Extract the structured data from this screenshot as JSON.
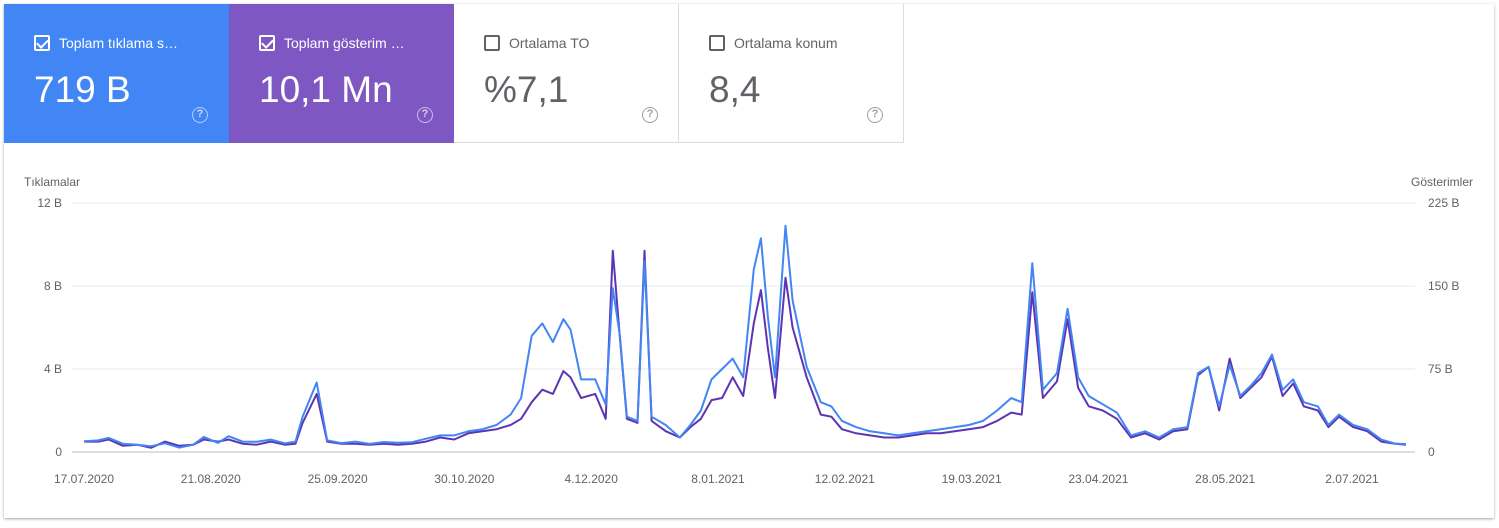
{
  "cards": [
    {
      "label": "Toplam tıklama s…",
      "value": "719 B",
      "checked": true
    },
    {
      "label": "Toplam gösterim …",
      "value": "10,1 Mn",
      "checked": true
    },
    {
      "label": "Ortalama TO",
      "value": "%7,1",
      "checked": false
    },
    {
      "label": "Ortalama konum",
      "value": "8,4",
      "checked": false
    }
  ],
  "help_glyph": "?",
  "colors": {
    "clicks": "#4285f4",
    "impressions": "#7e57c2",
    "line_clicks": "#4285f4",
    "line_impressions": "#5e35b1"
  },
  "chart_data": {
    "type": "line",
    "left_axis_label": "Tıklamalar",
    "right_axis_label": "Gösterimler",
    "left_ticks": [
      "0",
      "4 B",
      "8 B",
      "12 B"
    ],
    "right_ticks": [
      "0",
      "75 B",
      "150 B",
      "225 B"
    ],
    "x_ticks": [
      "17.07.2020",
      "21.08.2020",
      "25.09.2020",
      "30.10.2020",
      "4.12.2020",
      "8.01.2021",
      "12.02.2021",
      "19.03.2021",
      "23.04.2021",
      "28.05.2021",
      "2.07.2021"
    ],
    "left_ylim": [
      0,
      12000
    ],
    "right_ylim": [
      0,
      225000
    ],
    "x_start": "2020-07-17",
    "x_end": "2021-07-27",
    "series": [
      {
        "name": "Toplam tıklama sayısı",
        "axis": "left",
        "points": [
          [
            "2020-07-17",
            520
          ],
          [
            "2020-07-21",
            560
          ],
          [
            "2020-07-24",
            680
          ],
          [
            "2020-07-28",
            400
          ],
          [
            "2020-08-01",
            350
          ],
          [
            "2020-08-05",
            280
          ],
          [
            "2020-08-09",
            420
          ],
          [
            "2020-08-13",
            210
          ],
          [
            "2020-08-17",
            350
          ],
          [
            "2020-08-20",
            730
          ],
          [
            "2020-08-24",
            440
          ],
          [
            "2020-08-27",
            760
          ],
          [
            "2020-08-31",
            500
          ],
          [
            "2020-09-04",
            490
          ],
          [
            "2020-09-08",
            600
          ],
          [
            "2020-09-12",
            420
          ],
          [
            "2020-09-15",
            500
          ],
          [
            "2020-09-17",
            1700
          ],
          [
            "2020-09-21",
            3350
          ],
          [
            "2020-09-24",
            560
          ],
          [
            "2020-09-28",
            430
          ],
          [
            "2020-10-02",
            500
          ],
          [
            "2020-10-06",
            390
          ],
          [
            "2020-10-10",
            480
          ],
          [
            "2020-10-14",
            450
          ],
          [
            "2020-10-18",
            470
          ],
          [
            "2020-10-22",
            640
          ],
          [
            "2020-10-26",
            800
          ],
          [
            "2020-10-30",
            800
          ],
          [
            "2020-11-03",
            1000
          ],
          [
            "2020-11-07",
            1100
          ],
          [
            "2020-11-11",
            1300
          ],
          [
            "2020-11-15",
            1800
          ],
          [
            "2020-11-18",
            2600
          ],
          [
            "2020-11-21",
            5600
          ],
          [
            "2020-11-24",
            6200
          ],
          [
            "2020-11-27",
            5300
          ],
          [
            "2020-11-30",
            6400
          ],
          [
            "2020-12-02",
            5900
          ],
          [
            "2020-12-05",
            3500
          ],
          [
            "2020-12-09",
            3500
          ],
          [
            "2020-12-12",
            2300
          ],
          [
            "2020-12-14",
            7900
          ],
          [
            "2020-12-16",
            5600
          ],
          [
            "2020-12-18",
            1700
          ],
          [
            "2020-12-21",
            1500
          ],
          [
            "2020-12-23",
            9200
          ],
          [
            "2020-12-25",
            1700
          ],
          [
            "2020-12-29",
            1300
          ],
          [
            "2021-01-02",
            700
          ],
          [
            "2021-01-05",
            1300
          ],
          [
            "2021-01-08",
            2000
          ],
          [
            "2021-01-11",
            3500
          ],
          [
            "2021-01-14",
            4000
          ],
          [
            "2021-01-17",
            4500
          ],
          [
            "2021-01-20",
            3600
          ],
          [
            "2021-01-23",
            8800
          ],
          [
            "2021-01-25",
            10300
          ],
          [
            "2021-01-27",
            6500
          ],
          [
            "2021-01-29",
            3600
          ],
          [
            "2021-02-01",
            10900
          ],
          [
            "2021-02-03",
            7300
          ],
          [
            "2021-02-07",
            4100
          ],
          [
            "2021-02-11",
            2400
          ],
          [
            "2021-02-14",
            2200
          ],
          [
            "2021-02-17",
            1500
          ],
          [
            "2021-02-21",
            1200
          ],
          [
            "2021-02-25",
            1000
          ],
          [
            "2021-03-01",
            900
          ],
          [
            "2021-03-05",
            800
          ],
          [
            "2021-03-09",
            900
          ],
          [
            "2021-03-13",
            1000
          ],
          [
            "2021-03-17",
            1100
          ],
          [
            "2021-03-21",
            1200
          ],
          [
            "2021-03-25",
            1300
          ],
          [
            "2021-03-29",
            1500
          ],
          [
            "2021-04-02",
            2000
          ],
          [
            "2021-04-06",
            2600
          ],
          [
            "2021-04-09",
            2400
          ],
          [
            "2021-04-12",
            9100
          ],
          [
            "2021-04-15",
            3000
          ],
          [
            "2021-04-19",
            3800
          ],
          [
            "2021-04-22",
            6900
          ],
          [
            "2021-04-25",
            3600
          ],
          [
            "2021-04-28",
            2700
          ],
          [
            "2021-05-02",
            2300
          ],
          [
            "2021-05-06",
            1900
          ],
          [
            "2021-05-10",
            800
          ],
          [
            "2021-05-14",
            1000
          ],
          [
            "2021-05-18",
            700
          ],
          [
            "2021-05-22",
            1100
          ],
          [
            "2021-05-26",
            1200
          ],
          [
            "2021-05-29",
            3800
          ],
          [
            "2021-06-01",
            4100
          ],
          [
            "2021-06-04",
            2200
          ],
          [
            "2021-06-07",
            4200
          ],
          [
            "2021-06-10",
            2700
          ],
          [
            "2021-06-13",
            3200
          ],
          [
            "2021-06-16",
            3800
          ],
          [
            "2021-06-19",
            4700
          ],
          [
            "2021-06-22",
            3000
          ],
          [
            "2021-06-25",
            3500
          ],
          [
            "2021-06-28",
            2400
          ],
          [
            "2021-07-02",
            2200
          ],
          [
            "2021-07-05",
            1300
          ],
          [
            "2021-07-08",
            1800
          ],
          [
            "2021-07-12",
            1300
          ],
          [
            "2021-07-16",
            1100
          ],
          [
            "2021-07-20",
            600
          ],
          [
            "2021-07-24",
            400
          ],
          [
            "2021-07-27",
            380
          ]
        ]
      },
      {
        "name": "Toplam gösterim sayısı",
        "axis": "right",
        "points": [
          [
            "2020-07-17",
            9400
          ],
          [
            "2020-07-21",
            9400
          ],
          [
            "2020-07-24",
            11300
          ],
          [
            "2020-07-28",
            5600
          ],
          [
            "2020-08-01",
            6600
          ],
          [
            "2020-08-05",
            3800
          ],
          [
            "2020-08-09",
            9400
          ],
          [
            "2020-08-13",
            5600
          ],
          [
            "2020-08-17",
            6600
          ],
          [
            "2020-08-20",
            11300
          ],
          [
            "2020-08-24",
            9400
          ],
          [
            "2020-08-27",
            11300
          ],
          [
            "2020-08-31",
            7500
          ],
          [
            "2020-09-04",
            6600
          ],
          [
            "2020-09-08",
            9400
          ],
          [
            "2020-09-12",
            6600
          ],
          [
            "2020-09-15",
            7500
          ],
          [
            "2020-09-17",
            26300
          ],
          [
            "2020-09-21",
            52500
          ],
          [
            "2020-09-24",
            9400
          ],
          [
            "2020-09-28",
            7500
          ],
          [
            "2020-10-02",
            7500
          ],
          [
            "2020-10-06",
            6600
          ],
          [
            "2020-10-10",
            7500
          ],
          [
            "2020-10-14",
            6600
          ],
          [
            "2020-10-18",
            7500
          ],
          [
            "2020-10-22",
            9400
          ],
          [
            "2020-10-26",
            13100
          ],
          [
            "2020-10-30",
            11300
          ],
          [
            "2020-11-03",
            16900
          ],
          [
            "2020-11-07",
            18800
          ],
          [
            "2020-11-11",
            20600
          ],
          [
            "2020-11-15",
            24400
          ],
          [
            "2020-11-18",
            30000
          ],
          [
            "2020-11-21",
            45000
          ],
          [
            "2020-11-24",
            56300
          ],
          [
            "2020-11-27",
            52500
          ],
          [
            "2020-11-30",
            73100
          ],
          [
            "2020-12-02",
            67500
          ],
          [
            "2020-12-05",
            48800
          ],
          [
            "2020-12-09",
            52500
          ],
          [
            "2020-12-12",
            30000
          ],
          [
            "2020-12-14",
            181900
          ],
          [
            "2020-12-16",
            103100
          ],
          [
            "2020-12-18",
            30000
          ],
          [
            "2020-12-21",
            26300
          ],
          [
            "2020-12-23",
            181900
          ],
          [
            "2020-12-25",
            28100
          ],
          [
            "2020-12-29",
            18800
          ],
          [
            "2021-01-02",
            13100
          ],
          [
            "2021-01-05",
            22500
          ],
          [
            "2021-01-08",
            30000
          ],
          [
            "2021-01-11",
            46900
          ],
          [
            "2021-01-14",
            48800
          ],
          [
            "2021-01-17",
            67500
          ],
          [
            "2021-01-20",
            50600
          ],
          [
            "2021-01-23",
            116300
          ],
          [
            "2021-01-25",
            146300
          ],
          [
            "2021-01-27",
            93800
          ],
          [
            "2021-01-29",
            48800
          ],
          [
            "2021-02-01",
            157500
          ],
          [
            "2021-02-03",
            112500
          ],
          [
            "2021-02-07",
            67500
          ],
          [
            "2021-02-11",
            33800
          ],
          [
            "2021-02-14",
            31900
          ],
          [
            "2021-02-17",
            20600
          ],
          [
            "2021-02-21",
            16900
          ],
          [
            "2021-02-25",
            15000
          ],
          [
            "2021-03-01",
            13100
          ],
          [
            "2021-03-05",
            13100
          ],
          [
            "2021-03-09",
            15000
          ],
          [
            "2021-03-13",
            16900
          ],
          [
            "2021-03-17",
            16900
          ],
          [
            "2021-03-21",
            18800
          ],
          [
            "2021-03-25",
            20600
          ],
          [
            "2021-03-29",
            22500
          ],
          [
            "2021-04-02",
            28100
          ],
          [
            "2021-04-06",
            35600
          ],
          [
            "2021-04-09",
            33800
          ],
          [
            "2021-04-12",
            144400
          ],
          [
            "2021-04-15",
            48800
          ],
          [
            "2021-04-19",
            63800
          ],
          [
            "2021-04-22",
            120000
          ],
          [
            "2021-04-25",
            58100
          ],
          [
            "2021-04-28",
            41300
          ],
          [
            "2021-05-02",
            37500
          ],
          [
            "2021-05-06",
            30000
          ],
          [
            "2021-05-10",
            13100
          ],
          [
            "2021-05-14",
            16900
          ],
          [
            "2021-05-18",
            11300
          ],
          [
            "2021-05-22",
            18800
          ],
          [
            "2021-05-26",
            20600
          ],
          [
            "2021-05-29",
            69400
          ],
          [
            "2021-06-01",
            76900
          ],
          [
            "2021-06-04",
            37500
          ],
          [
            "2021-06-07",
            84400
          ],
          [
            "2021-06-10",
            48800
          ],
          [
            "2021-06-13",
            58100
          ],
          [
            "2021-06-16",
            67500
          ],
          [
            "2021-06-19",
            86300
          ],
          [
            "2021-06-22",
            50600
          ],
          [
            "2021-06-25",
            61900
          ],
          [
            "2021-06-28",
            41300
          ],
          [
            "2021-07-02",
            37500
          ],
          [
            "2021-07-05",
            22500
          ],
          [
            "2021-07-08",
            31900
          ],
          [
            "2021-07-12",
            22500
          ],
          [
            "2021-07-16",
            18800
          ],
          [
            "2021-07-20",
            9400
          ],
          [
            "2021-07-24",
            7500
          ],
          [
            "2021-07-27",
            6600
          ]
        ]
      }
    ]
  }
}
